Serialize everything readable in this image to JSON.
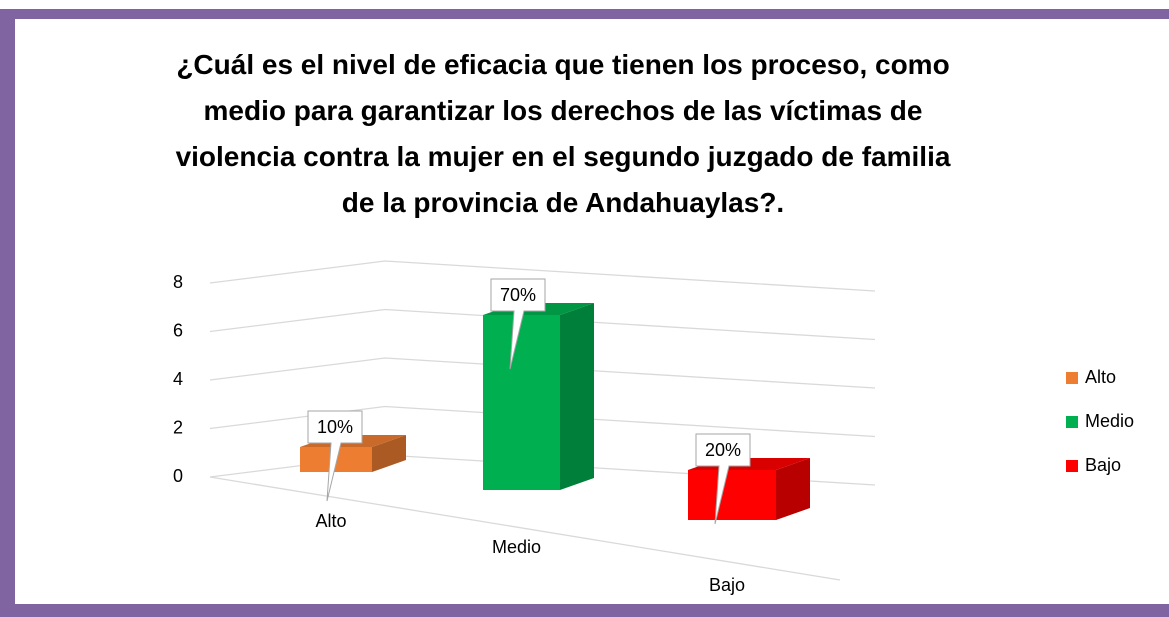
{
  "chart_data": {
    "type": "bar3d",
    "title": "¿Cuál es el nivel de eficacia que tienen los proceso, como medio para garantizar los derechos de las víctimas de violencia contra la mujer en el segundo juzgado de familia de la provincia de Andahuaylas?.",
    "categories": [
      "Alto",
      "Medio",
      "Bajo"
    ],
    "series": [
      {
        "name": "Alto",
        "color": "#ed7d31",
        "values": [
          1,
          null,
          null
        ],
        "value_labels": [
          "10%",
          null,
          null
        ]
      },
      {
        "name": "Medio",
        "color": "#00b050",
        "values": [
          null,
          7,
          null
        ],
        "value_labels": [
          null,
          "70%",
          null
        ]
      },
      {
        "name": "Bajo",
        "color": "#ff0000",
        "values": [
          null,
          null,
          2
        ],
        "value_labels": [
          null,
          null,
          "20%"
        ]
      }
    ],
    "ylim": [
      0,
      8
    ],
    "yticks": [
      0,
      2,
      4,
      6,
      8
    ],
    "grid": true,
    "legend": "right"
  }
}
